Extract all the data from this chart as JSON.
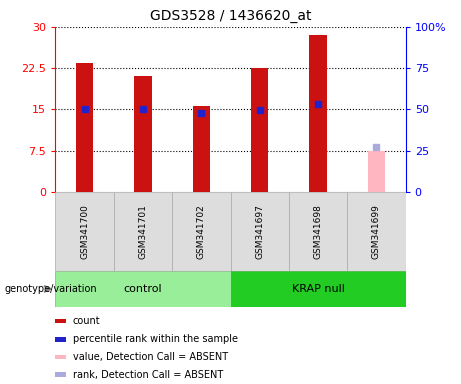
{
  "title": "GDS3528 / 1436620_at",
  "samples": [
    "GSM341700",
    "GSM341701",
    "GSM341702",
    "GSM341697",
    "GSM341698",
    "GSM341699"
  ],
  "count_values": [
    23.5,
    21.0,
    15.6,
    22.5,
    28.5,
    null
  ],
  "percentile_values_pct": [
    50.0,
    50.0,
    48.0,
    49.5,
    53.0,
    null
  ],
  "absent_count": [
    null,
    null,
    null,
    null,
    null,
    7.5
  ],
  "absent_rank_pct": [
    null,
    null,
    null,
    null,
    null,
    27.0
  ],
  "ylim_left": [
    0,
    30
  ],
  "ylim_right": [
    0,
    100
  ],
  "yticks_left": [
    0,
    7.5,
    15,
    22.5,
    30
  ],
  "yticks_right": [
    0,
    25,
    50,
    75,
    100
  ],
  "ytick_labels_left": [
    "0",
    "7.5",
    "15",
    "22.5",
    "30"
  ],
  "ytick_labels_right": [
    "0",
    "25",
    "50",
    "75",
    "100%"
  ],
  "bar_color_count": "#CC1111",
  "bar_color_absent_count": "#FFB6C1",
  "dot_color_percentile": "#2222CC",
  "dot_color_absent_rank": "#AAAADD",
  "group_control_color": "#99EE99",
  "group_krap_color": "#22CC22",
  "group_label": "genotype/variation",
  "legend_items": [
    {
      "color": "#CC1111",
      "label": "count"
    },
    {
      "color": "#2222CC",
      "label": "percentile rank within the sample"
    },
    {
      "color": "#FFB6C1",
      "label": "value, Detection Call = ABSENT"
    },
    {
      "color": "#AAAADD",
      "label": "rank, Detection Call = ABSENT"
    }
  ],
  "bar_width": 0.3
}
